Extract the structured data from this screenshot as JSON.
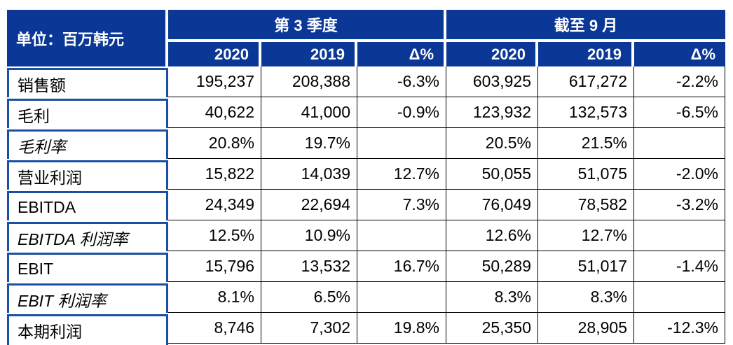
{
  "chart_data": {
    "type": "table",
    "unit_label": "单位：百万韩元",
    "column_groups": [
      {
        "label": "第 3 季度",
        "span": 3
      },
      {
        "label": "截至 9 月",
        "span": 3
      }
    ],
    "columns": [
      "2020",
      "2019",
      "Δ%",
      "2020",
      "2019",
      "Δ%"
    ],
    "rows": [
      {
        "label": "销售额",
        "italic": false,
        "values": [
          "195,237",
          "208,388",
          "-6.3%",
          "603,925",
          "617,272",
          "-2.2%"
        ]
      },
      {
        "label": "毛利",
        "italic": false,
        "values": [
          "40,622",
          "41,000",
          "-0.9%",
          "123,932",
          "132,573",
          "-6.5%"
        ]
      },
      {
        "label": "毛利率",
        "italic": true,
        "values": [
          "20.8%",
          "19.7%",
          "",
          "20.5%",
          "21.5%",
          ""
        ]
      },
      {
        "label": "营业利润",
        "italic": false,
        "values": [
          "15,822",
          "14,039",
          "12.7%",
          "50,055",
          "51,075",
          "-2.0%"
        ]
      },
      {
        "label": "EBITDA",
        "italic": false,
        "values": [
          "24,349",
          "22,694",
          "7.3%",
          "76,049",
          "78,582",
          "-3.2%"
        ]
      },
      {
        "label": "EBITDA 利润率",
        "italic": true,
        "values": [
          "12.5%",
          "10.9%",
          "",
          "12.6%",
          "12.7%",
          ""
        ]
      },
      {
        "label": "EBIT",
        "italic": false,
        "values": [
          "15,796",
          "13,532",
          "16.7%",
          "50,289",
          "51,017",
          "-1.4%"
        ]
      },
      {
        "label": "EBIT 利润率",
        "italic": true,
        "values": [
          "8.1%",
          "6.5%",
          "",
          "8.3%",
          "8.3%",
          ""
        ]
      },
      {
        "label": "本期利润",
        "italic": false,
        "values": [
          "8,746",
          "7,302",
          "19.8%",
          "25,350",
          "28,905",
          "-12.3%"
        ]
      }
    ],
    "colors": {
      "header_bg": "#0b3896",
      "header_text": "#ffffff",
      "label_cell_border": "#1a4fa6",
      "grid_line": "#000000",
      "text_color": "#000000"
    }
  }
}
